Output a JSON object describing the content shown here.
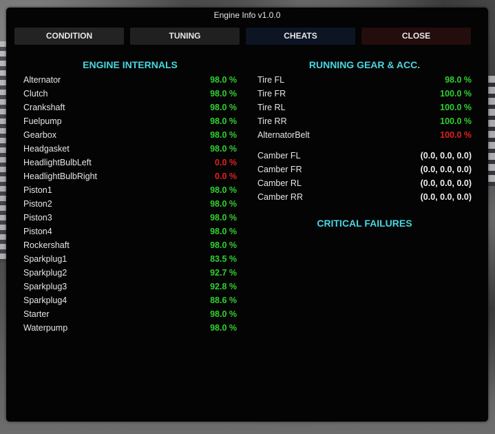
{
  "window": {
    "title": "Engine Info v1.0.0"
  },
  "tabs": [
    {
      "label": "CONDITION"
    },
    {
      "label": "TUNING"
    },
    {
      "label": "CHEATS"
    },
    {
      "label": "CLOSE"
    }
  ],
  "engine_internals": {
    "title": "ENGINE INTERNALS",
    "rows": [
      {
        "label": "Alternator",
        "value": "98.0 %",
        "status": "green"
      },
      {
        "label": "Clutch",
        "value": "98.0 %",
        "status": "green"
      },
      {
        "label": "Crankshaft",
        "value": "98.0 %",
        "status": "green"
      },
      {
        "label": "Fuelpump",
        "value": "98.0 %",
        "status": "green"
      },
      {
        "label": "Gearbox",
        "value": "98.0 %",
        "status": "green"
      },
      {
        "label": "Headgasket",
        "value": "98.0 %",
        "status": "green"
      },
      {
        "label": "HeadlightBulbLeft",
        "value": "0.0 %",
        "status": "red"
      },
      {
        "label": "HeadlightBulbRight",
        "value": "0.0 %",
        "status": "red"
      },
      {
        "label": "Piston1",
        "value": "98.0 %",
        "status": "green"
      },
      {
        "label": "Piston2",
        "value": "98.0 %",
        "status": "green"
      },
      {
        "label": "Piston3",
        "value": "98.0 %",
        "status": "green"
      },
      {
        "label": "Piston4",
        "value": "98.0 %",
        "status": "green"
      },
      {
        "label": "Rockershaft",
        "value": "98.0 %",
        "status": "green"
      },
      {
        "label": "Sparkplug1",
        "value": "83.5 %",
        "status": "green"
      },
      {
        "label": "Sparkplug2",
        "value": "92.7 %",
        "status": "green"
      },
      {
        "label": "Sparkplug3",
        "value": "92.8 %",
        "status": "green"
      },
      {
        "label": "Sparkplug4",
        "value": "88.6 %",
        "status": "green"
      },
      {
        "label": "Starter",
        "value": "98.0 %",
        "status": "green"
      },
      {
        "label": "Waterpump",
        "value": "98.0 %",
        "status": "green"
      }
    ]
  },
  "running_gear": {
    "title": "RUNNING GEAR & ACC.",
    "rows": [
      {
        "label": "Tire FL",
        "value": "98.0 %",
        "status": "green"
      },
      {
        "label": "Tire FR",
        "value": "100.0 %",
        "status": "green"
      },
      {
        "label": "Tire RL",
        "value": "100.0 %",
        "status": "green"
      },
      {
        "label": "Tire RR",
        "value": "100.0 %",
        "status": "green"
      },
      {
        "label": "AlternatorBelt",
        "value": "100.0 %",
        "status": "red"
      }
    ],
    "camber": [
      {
        "label": "Camber FL",
        "value": "(0.0, 0.0, 0.0)"
      },
      {
        "label": "Camber FR",
        "value": "(0.0, 0.0, 0.0)"
      },
      {
        "label": "Camber RL",
        "value": "(0.0, 0.0, 0.0)"
      },
      {
        "label": "Camber RR",
        "value": "(0.0, 0.0, 0.0)"
      }
    ]
  },
  "critical_failures": {
    "title": "CRITICAL FAILURES"
  },
  "colors": {
    "accent": "#49d6e0",
    "ok": "#2fd12f",
    "fail": "#e0211f"
  }
}
